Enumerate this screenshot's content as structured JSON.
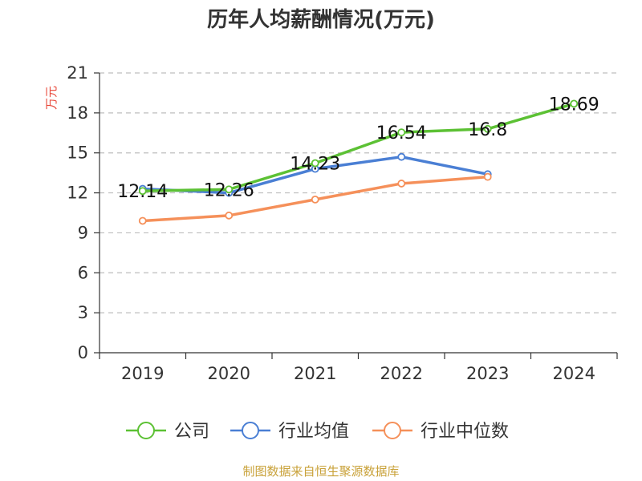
{
  "chart_data": {
    "type": "line",
    "title": "历年人均薪酬情况(万元)",
    "ylabel": "万元",
    "xlabel": "",
    "categories": [
      "2019",
      "2020",
      "2021",
      "2022",
      "2023",
      "2024"
    ],
    "ylim": [
      0,
      21
    ],
    "yticks": [
      0,
      3,
      6,
      9,
      12,
      15,
      18,
      21
    ],
    "grid": true,
    "legend_position": "bottom-center",
    "series": [
      {
        "name": "公司",
        "color": "#5cc134",
        "values": [
          12.14,
          12.26,
          14.23,
          16.54,
          16.8,
          18.69
        ],
        "labels": [
          "12.14",
          "12.26",
          "14.23",
          "16.54",
          "16.8",
          "18.69"
        ]
      },
      {
        "name": "行业均值",
        "color": "#4a7fd4",
        "values": [
          12.3,
          12.0,
          13.8,
          14.7,
          13.4,
          null
        ]
      },
      {
        "name": "行业中位数",
        "color": "#f5905a",
        "values": [
          9.9,
          10.3,
          11.5,
          12.7,
          13.2,
          null
        ]
      }
    ],
    "source": "制图数据来自恒生聚源数据库"
  }
}
